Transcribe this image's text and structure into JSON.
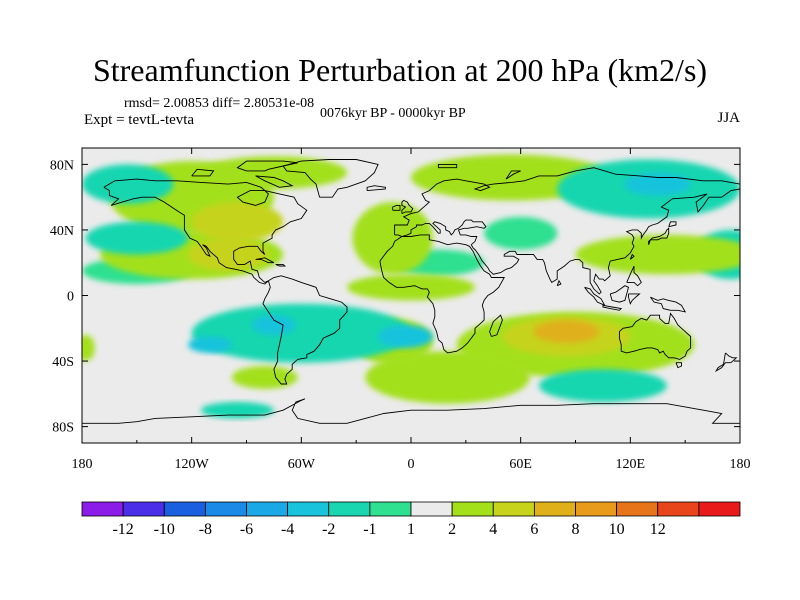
{
  "title": "Streamfunction Perturbation at 200 hPa (km2/s)",
  "rmsd_line": "rmsd= 2.00853 diff= 2.80531e-08",
  "expt_line": "Expt = tevtL-tevta",
  "period_line": "0076kyr BP - 0000kyr BP",
  "season": "JJA",
  "colors": {
    "land_outline": "#000000",
    "ocean_bg": "#ebebeb"
  },
  "chart_data": {
    "type": "heatmap",
    "projection": "cylindrical-equidistant",
    "xlim": [
      -180,
      180
    ],
    "ylim": [
      -90,
      90
    ],
    "x_tick_labels": [
      "180",
      "120W",
      "60W",
      "0",
      "60E",
      "120E",
      "180"
    ],
    "y_tick_labels": [
      "80N",
      "40N",
      "0",
      "40S",
      "80S"
    ],
    "colorbar": {
      "labels": [
        "-12",
        "-10",
        "-8",
        "-6",
        "-4",
        "-2",
        "-1",
        "1",
        "2",
        "4",
        "6",
        "8",
        "10",
        "12"
      ],
      "colors": [
        "#8c1ce8",
        "#4b2ee8",
        "#1a5fe0",
        "#1a8ae6",
        "#1aa8e6",
        "#19c3dc",
        "#19d6b0",
        "#2ee090",
        "#ebebeb",
        "#a3e01a",
        "#c6d31a",
        "#e0b01a",
        "#e89a1a",
        "#e8741a",
        "#e8461a",
        "#e81a1a"
      ]
    },
    "regions": [
      {
        "lon": -120,
        "lat": 60,
        "rx": 45,
        "ry": 22,
        "value": 2
      },
      {
        "lon": -75,
        "lat": 75,
        "rx": 40,
        "ry": 10,
        "value": 2
      },
      {
        "lon": -95,
        "lat": 45,
        "rx": 25,
        "ry": 12,
        "value": 4
      },
      {
        "lon": -100,
        "lat": 25,
        "rx": 22,
        "ry": 10,
        "value": 4
      },
      {
        "lon": -120,
        "lat": 25,
        "rx": 50,
        "ry": 15,
        "value": 2
      },
      {
        "lon": -155,
        "lat": 68,
        "rx": 25,
        "ry": 12,
        "value": -2
      },
      {
        "lon": -150,
        "lat": 35,
        "rx": 28,
        "ry": 10,
        "value": -2
      },
      {
        "lon": -150,
        "lat": 15,
        "rx": 30,
        "ry": 8,
        "value": -1
      },
      {
        "lon": -10,
        "lat": 35,
        "rx": 22,
        "ry": 22,
        "value": 2
      },
      {
        "lon": 15,
        "lat": 20,
        "rx": 25,
        "ry": 8,
        "value": -1
      },
      {
        "lon": 0,
        "lat": 5,
        "rx": 35,
        "ry": 8,
        "value": 2
      },
      {
        "lon": -10,
        "lat": -28,
        "rx": 22,
        "ry": 14,
        "value": 2
      },
      {
        "lon": 55,
        "lat": 72,
        "rx": 55,
        "ry": 14,
        "value": 2
      },
      {
        "lon": 130,
        "lat": 65,
        "rx": 50,
        "ry": 18,
        "value": -2
      },
      {
        "lon": 135,
        "lat": 68,
        "rx": 18,
        "ry": 7,
        "value": -4
      },
      {
        "lon": 175,
        "lat": 25,
        "rx": 20,
        "ry": 15,
        "value": -2
      },
      {
        "lon": 140,
        "lat": 25,
        "rx": 50,
        "ry": 12,
        "value": 2
      },
      {
        "lon": 60,
        "lat": 38,
        "rx": 20,
        "ry": 10,
        "value": -1
      },
      {
        "lon": 90,
        "lat": -30,
        "rx": 65,
        "ry": 20,
        "value": 2
      },
      {
        "lon": 85,
        "lat": -25,
        "rx": 35,
        "ry": 12,
        "value": 4
      },
      {
        "lon": 85,
        "lat": -22,
        "rx": 18,
        "ry": 7,
        "value": 6
      },
      {
        "lon": -60,
        "lat": -23,
        "rx": 60,
        "ry": 18,
        "value": -2
      },
      {
        "lon": -75,
        "lat": -18,
        "rx": 12,
        "ry": 6,
        "value": -4
      },
      {
        "lon": -3,
        "lat": -25,
        "rx": 15,
        "ry": 7,
        "value": -4
      },
      {
        "lon": -110,
        "lat": -30,
        "rx": 12,
        "ry": 5,
        "value": -4
      },
      {
        "lon": 20,
        "lat": -50,
        "rx": 45,
        "ry": 16,
        "value": 2
      },
      {
        "lon": 105,
        "lat": -55,
        "rx": 35,
        "ry": 10,
        "value": -2
      },
      {
        "lon": -80,
        "lat": -50,
        "rx": 18,
        "ry": 7,
        "value": 2
      },
      {
        "lon": -95,
        "lat": -70,
        "rx": 20,
        "ry": 5,
        "value": -2
      },
      {
        "lon": -178,
        "lat": -32,
        "rx": 5,
        "ry": 8,
        "value": 2
      }
    ]
  }
}
